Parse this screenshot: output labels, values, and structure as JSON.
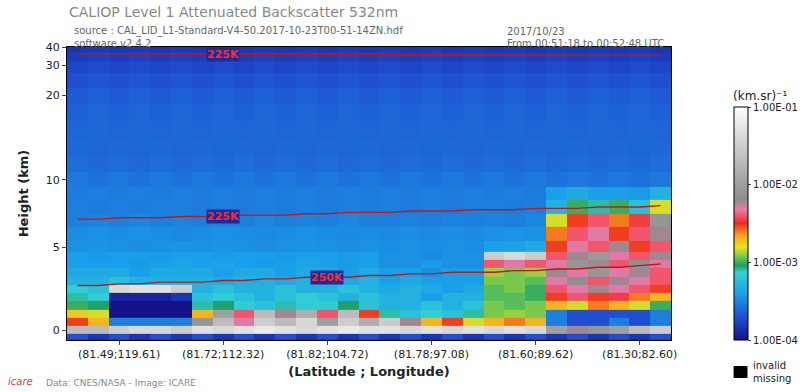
{
  "chart_data": {
    "type": "heatmap",
    "title": "CALIOP Level 1 Attenuated Backscatter 532nm",
    "notes": [
      "source : CAL_LID_L1-Standard-V4-50.2017-10-23T00-51-14ZN.hdf",
      "software v2.4.2",
      "2017/10/23",
      "From 00:51:18 to 00:52:48 UTC"
    ],
    "footer": "Data: CNES/NASA - Image: ICARE",
    "logo": "icare",
    "x_label": "(Latitude ; Longitude)",
    "y_label": "Height (km)",
    "categories": [
      null,
      null,
      "(81.49;119.61)",
      null,
      null,
      null,
      null,
      "(81.72;112.32)",
      null,
      null,
      null,
      null,
      "(81.82;104.72)",
      null,
      null,
      null,
      null,
      "(81.78;97.08)",
      null,
      null,
      null,
      null,
      "(81.60;89.62)",
      null,
      null,
      null,
      null,
      "(81.30;82.60)",
      null
    ],
    "ylim": [
      -0.6,
      40
    ],
    "yticks": [
      0,
      5,
      10,
      20,
      30,
      40
    ],
    "heights": [
      -0.4,
      0,
      0.5,
      1,
      1.5,
      2,
      2.5,
      3,
      3.5,
      4,
      4.5,
      5,
      6,
      7,
      8,
      9,
      10,
      12,
      14,
      16,
      18,
      20,
      25,
      30,
      35,
      39.5
    ],
    "cells": [
      [
        0.0002,
        0.00015,
        0.0002,
        0.00015,
        0.0002,
        0.00015,
        0.0002,
        0.00015,
        0.0002,
        0.00015,
        0.0002,
        0.00015,
        0.0002,
        0.00015,
        0.0002,
        0.00015,
        0.0002,
        0.00015,
        0.0002,
        0.00015,
        0.0002,
        0.00015,
        0.0002,
        0.00015,
        0.0002,
        0.00015,
        0.0002,
        0.00015,
        0.0002
      ],
      [
        0.02,
        0.02,
        0.03,
        0.04,
        0.04,
        0.03,
        0.05,
        0.04,
        0.05,
        0.06,
        0.05,
        0.04,
        0.05,
        0.06,
        0.05,
        0.05,
        0.04,
        0.05,
        0.04,
        0.05,
        0.04,
        0.05,
        0.04,
        0.01,
        0.006,
        0.008,
        0.01,
        0.02,
        0.03
      ],
      [
        0.003,
        0.002,
        0.0003,
        0.0003,
        0.0003,
        0.0003,
        0.008,
        0.02,
        0.005,
        0.03,
        0.02,
        0.04,
        0.01,
        0.03,
        0.015,
        0.03,
        0.006,
        0.002,
        0.003,
        0.0015,
        0.002,
        0.0025,
        0.002,
        0.0003,
        0.0002,
        0.0002,
        0.0003,
        0.0002,
        0.0003
      ],
      [
        0.0018,
        0.0015,
        0.0001,
        0.0001,
        0.0001,
        0.0001,
        0.002,
        0.01,
        0.004,
        0.02,
        0.006,
        0.015,
        0.004,
        0.02,
        0.003,
        0.0008,
        0.0006,
        0.0007,
        0.0006,
        0.0008,
        0.0012,
        0.0013,
        0.0012,
        0.0003,
        0.0002,
        0.0002,
        0.0002,
        0.0002,
        0.0003
      ],
      [
        0.001,
        0.0009,
        0.0001,
        0.0001,
        0.0001,
        0.0001,
        0.0008,
        0.0009,
        0.0007,
        0.0006,
        0.0008,
        0.0007,
        0.0007,
        0.0009,
        0.0006,
        0.0005,
        0.0005,
        0.0006,
        0.0005,
        0.0006,
        0.0012,
        0.0011,
        0.0012,
        0.002,
        0.0015,
        0.0025,
        0.002,
        0.0015,
        0.001
      ],
      [
        0.0008,
        0.0007,
        0.00012,
        0.00012,
        0.00012,
        0.00015,
        0.0006,
        0.0007,
        0.0006,
        0.0005,
        0.0006,
        0.0007,
        0.0006,
        0.0005,
        0.0006,
        0.0005,
        0.0005,
        0.0004,
        0.0005,
        0.0005,
        0.0011,
        0.0011,
        0.001,
        0.003,
        0.004,
        0.003,
        0.0035,
        0.0025,
        0.002
      ],
      [
        0.0007,
        0.0006,
        0.04,
        0.05,
        0.05,
        0.03,
        0.0005,
        0.0006,
        0.0005,
        0.0005,
        0.0006,
        0.0005,
        0.0005,
        0.0006,
        0.0005,
        0.00045,
        0.0005,
        0.00045,
        0.0004,
        0.00045,
        0.0011,
        0.0012,
        0.001,
        0.004,
        0.005,
        0.006,
        0.005,
        0.004,
        0.003
      ],
      [
        0.0005,
        0.0005,
        0.0006,
        0.0005,
        0.0005,
        0.0005,
        0.0005,
        0.00045,
        0.0005,
        0.0005,
        0.00045,
        0.0005,
        0.0005,
        0.00045,
        0.0005,
        0.0004,
        0.00045,
        0.0004,
        0.0004,
        0.0004,
        0.0012,
        0.0012,
        0.0011,
        0.005,
        0.007,
        0.004,
        0.006,
        0.005,
        0.004
      ],
      [
        0.00045,
        0.00045,
        0.00045,
        0.0004,
        0.00045,
        0.00045,
        0.00045,
        0.0004,
        0.00045,
        0.00045,
        0.0004,
        0.00045,
        0.00045,
        0.0004,
        0.00045,
        0.0004,
        0.0004,
        0.00035,
        0.0004,
        0.0004,
        0.0013,
        0.0012,
        0.0013,
        0.006,
        0.005,
        0.008,
        0.005,
        0.006,
        0.004
      ],
      [
        0.0004,
        0.0004,
        0.0004,
        0.00038,
        0.0004,
        0.00042,
        0.0004,
        0.00042,
        0.0004,
        0.00038,
        0.0004,
        0.00042,
        0.0004,
        0.00038,
        0.0004,
        0.00035,
        0.00035,
        0.00038,
        0.00035,
        0.00035,
        0.004,
        0.005,
        0.004,
        0.005,
        0.008,
        0.006,
        0.004,
        0.007,
        0.005
      ],
      [
        0.0004,
        0.00038,
        0.0004,
        0.0004,
        0.00038,
        0.0004,
        0.0004,
        0.00038,
        0.0004,
        0.0004,
        0.00038,
        0.0004,
        0.0004,
        0.00038,
        0.0004,
        0.00035,
        0.00035,
        0.00033,
        0.00035,
        0.00035,
        0.03,
        0.04,
        0.03,
        0.004,
        0.006,
        0.009,
        0.005,
        0.004,
        0.006
      ],
      [
        0.00035,
        0.00036,
        0.00035,
        0.00034,
        0.00035,
        0.00036,
        0.00035,
        0.00036,
        0.00035,
        0.00034,
        0.00035,
        0.00036,
        0.00035,
        0.00034,
        0.00035,
        0.00034,
        0.00035,
        0.00034,
        0.00035,
        0.00034,
        0.0004,
        0.0004,
        0.00045,
        0.003,
        0.005,
        0.004,
        0.006,
        0.003,
        0.004
      ],
      [
        0.00034,
        0.00035,
        0.00034,
        0.00035,
        0.00034,
        0.00033,
        0.00034,
        0.00035,
        0.00034,
        0.00033,
        0.00034,
        0.00035,
        0.00034,
        0.00033,
        0.00034,
        0.00033,
        0.00034,
        0.00033,
        0.00034,
        0.00033,
        0.00035,
        0.00036,
        0.00035,
        0.0025,
        0.004,
        0.005,
        0.003,
        0.004,
        0.006
      ],
      [
        0.0003,
        0.00031,
        0.0003,
        0.00032,
        0.0003,
        0.00031,
        0.0003,
        0.00031,
        0.0003,
        0.00032,
        0.0003,
        0.00031,
        0.0003,
        0.00032,
        0.0003,
        0.0003,
        0.00031,
        0.0003,
        0.00031,
        0.0003,
        0.00031,
        0.0003,
        0.00032,
        0.0015,
        0.003,
        0.004,
        0.0025,
        0.0035,
        0.008
      ],
      [
        0.0003,
        0.00029,
        0.0003,
        0.00029,
        0.0003,
        0.0003,
        0.00029,
        0.0003,
        0.00029,
        0.0003,
        0.00029,
        0.0003,
        0.00029,
        0.0003,
        0.00029,
        0.0003,
        0.00029,
        0.0003,
        0.00029,
        0.0003,
        0.0003,
        0.00029,
        0.0003,
        0.0005,
        0.001,
        0.0008,
        0.001,
        0.0006,
        0.0015
      ],
      [
        0.00029,
        0.0003,
        0.00029,
        0.0003,
        0.00029,
        0.0003,
        0.00029,
        0.0003,
        0.00029,
        0.0003,
        0.00029,
        0.0003,
        0.00029,
        0.0003,
        0.00029,
        0.0003,
        0.00029,
        0.0003,
        0.00029,
        0.0003,
        0.00029,
        0.0003,
        0.00029,
        0.0004,
        0.00045,
        0.0004,
        0.0004,
        0.00038,
        0.0005
      ],
      [
        0.00028,
        0.00027,
        0.00028,
        0.00027,
        0.00028,
        0.00027,
        0.00028,
        0.00027,
        0.00028,
        0.00027,
        0.00028,
        0.00027,
        0.00028,
        0.00027,
        0.00028,
        0.00027,
        0.00028,
        0.00027,
        0.00028,
        0.00027,
        0.00028,
        0.00027,
        0.00028,
        0.00027,
        0.00028,
        0.00027,
        0.00028,
        0.00027,
        0.00028
      ],
      [
        0.00026,
        0.00025,
        0.00026,
        0.00025,
        0.00026,
        0.00025,
        0.00026,
        0.00025,
        0.00026,
        0.00025,
        0.00026,
        0.00025,
        0.00026,
        0.00025,
        0.00026,
        0.00025,
        0.00026,
        0.00025,
        0.00026,
        0.00025,
        0.00026,
        0.00025,
        0.00026,
        0.00025,
        0.00026,
        0.00025,
        0.00026,
        0.00025,
        0.00026
      ],
      [
        0.00025,
        0.00024,
        0.00025,
        0.00024,
        0.00025,
        0.00024,
        0.00025,
        0.00024,
        0.00025,
        0.00024,
        0.00025,
        0.00024,
        0.00025,
        0.00024,
        0.00025,
        0.00024,
        0.00025,
        0.00024,
        0.00025,
        0.00024,
        0.00025,
        0.00024,
        0.00025,
        0.00024,
        0.00025,
        0.00024,
        0.00025,
        0.00024,
        0.00025
      ],
      [
        0.00024,
        0.00025,
        0.00024,
        0.00025,
        0.00024,
        0.00025,
        0.00024,
        0.00025,
        0.00024,
        0.00025,
        0.00024,
        0.00025,
        0.00024,
        0.00025,
        0.00024,
        0.00025,
        0.00024,
        0.00025,
        0.00024,
        0.00025,
        0.00024,
        0.00025,
        0.00024,
        0.00025,
        0.00024,
        0.00025,
        0.00024,
        0.00025,
        0.00024
      ],
      [
        0.00023,
        0.00024,
        0.00023,
        0.00024,
        0.00023,
        0.00024,
        0.00023,
        0.00024,
        0.00023,
        0.00024,
        0.00023,
        0.00024,
        0.00023,
        0.00024,
        0.00023,
        0.00024,
        0.00023,
        0.00024,
        0.00023,
        0.00024,
        0.00023,
        0.00024,
        0.00023,
        0.00024,
        0.00023,
        0.00024,
        0.00023,
        0.00024,
        0.00023
      ],
      [
        0.00022,
        0.00023,
        0.00022,
        0.00023,
        0.00022,
        0.00023,
        0.00022,
        0.00023,
        0.00022,
        0.00023,
        0.00022,
        0.00023,
        0.00022,
        0.00023,
        0.00022,
        0.00023,
        0.00022,
        0.00023,
        0.00022,
        0.00023,
        0.00022,
        0.00023,
        0.00022,
        0.00023,
        0.00022,
        0.00023,
        0.00022,
        0.00023,
        0.00022
      ],
      [
        0.0002,
        0.00021,
        0.0002,
        0.00021,
        0.0002,
        0.00021,
        0.0002,
        0.00021,
        0.0002,
        0.00021,
        0.0002,
        0.00021,
        0.0002,
        0.00021,
        0.0002,
        0.00021,
        0.0002,
        0.00021,
        0.0002,
        0.00021,
        0.0002,
        0.00021,
        0.0002,
        0.00021,
        0.0002,
        0.00021,
        0.0002,
        0.00021,
        0.0002
      ],
      [
        0.00018,
        0.00019,
        0.00018,
        0.00019,
        0.00018,
        0.00019,
        0.00018,
        0.00019,
        0.00018,
        0.00019,
        0.00018,
        0.00019,
        0.00018,
        0.00019,
        0.00018,
        0.00019,
        0.00018,
        0.00019,
        0.00018,
        0.00019,
        0.00018,
        0.00019,
        0.00018,
        0.00019,
        0.00018,
        0.00019,
        0.00018,
        0.00019,
        0.00018
      ],
      [
        0.00016,
        0.00017,
        0.00016,
        0.00017,
        0.00016,
        0.00017,
        0.00016,
        0.00017,
        0.00016,
        0.00017,
        0.00016,
        0.00017,
        0.00016,
        0.00017,
        0.00016,
        0.00017,
        0.00016,
        0.00017,
        0.00016,
        0.00017,
        0.00016,
        0.00017,
        0.00016,
        0.00017,
        0.00016,
        0.00017,
        0.00016,
        0.00017,
        0.00016
      ],
      [
        0.00015,
        0.00016,
        0.00015,
        0.00016,
        0.00015,
        0.00016,
        0.00015,
        0.00016,
        0.00015,
        0.00016,
        0.00015,
        0.00016,
        0.00015,
        0.00016,
        0.00015,
        0.00016,
        0.00015,
        0.00016,
        0.00015,
        0.00016,
        0.00015,
        0.00016,
        0.00015,
        0.00016,
        0.00015,
        0.00016,
        0.00015,
        0.00016,
        0.00015
      ]
    ],
    "colorbar": {
      "title": "(km.sr)⁻¹",
      "range": [
        0.0001,
        0.1
      ],
      "ticks": [
        {
          "value": 0.0001,
          "label": "1.00E-04"
        },
        {
          "value": 0.001,
          "label": "1.00E-03"
        },
        {
          "value": 0.01,
          "label": "1.00E-02"
        },
        {
          "value": 0.1,
          "label": "1.00E-01"
        }
      ]
    },
    "missing": {
      "label": [
        "invalid",
        "missing"
      ],
      "color": "#000000"
    },
    "isotherms": [
      {
        "label": "225K",
        "color": "#c01818",
        "values": [
          36.2,
          36.2,
          36.1,
          36.1,
          36.1,
          36.0,
          36.0,
          36.0,
          36.0,
          35.9,
          35.9,
          35.9,
          35.9,
          35.8,
          35.8,
          35.8,
          35.8,
          35.7,
          35.7,
          35.7,
          35.7,
          35.6,
          35.6,
          35.6,
          35.6,
          35.5,
          35.5,
          35.5,
          35.5
        ]
      },
      {
        "label": "225K",
        "color": "#c01818",
        "values": [
          7.1,
          7.1,
          7.2,
          7.2,
          7.2,
          7.3,
          7.3,
          7.3,
          7.4,
          7.4,
          7.4,
          7.5,
          7.5,
          7.6,
          7.6,
          7.6,
          7.7,
          7.7,
          7.7,
          7.8,
          7.8,
          7.8,
          7.9,
          7.9,
          7.9,
          8.0,
          8.0,
          8.0,
          8.1
        ]
      },
      {
        "label": "250K",
        "color": "#c01818",
        "values": [
          2.7,
          2.7,
          2.8,
          2.8,
          2.9,
          2.9,
          2.9,
          3.0,
          3.0,
          3.1,
          3.1,
          3.2,
          3.2,
          3.2,
          3.3,
          3.3,
          3.4,
          3.4,
          3.5,
          3.5,
          3.5,
          3.6,
          3.6,
          3.7,
          3.7,
          3.8,
          3.8,
          3.9,
          4.0
        ]
      }
    ]
  }
}
